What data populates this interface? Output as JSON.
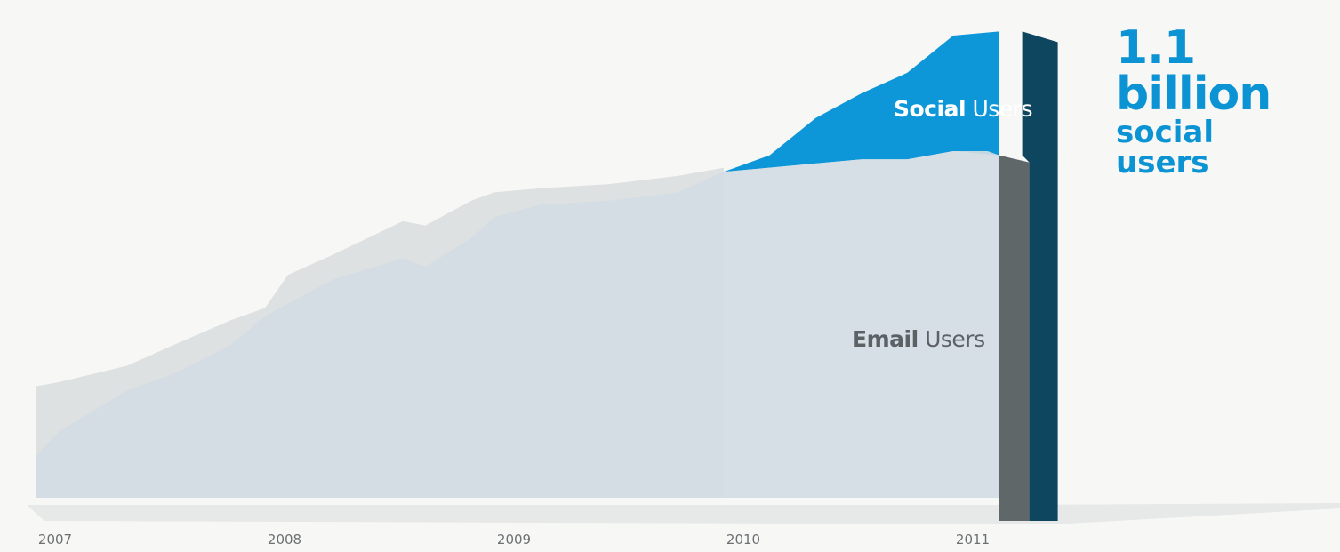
{
  "headline": {
    "value": "1.1 billion",
    "label_line1": "social",
    "label_line2": "users"
  },
  "chart_data": {
    "type": "area",
    "title": "",
    "xlabel": "",
    "ylabel": "",
    "x_ticks": [
      "2007",
      "2008",
      "2009",
      "2010",
      "2011"
    ],
    "stacked": true,
    "series": [
      {
        "name_bold": "Email",
        "name_rest": " Users",
        "color": "#d2dde3",
        "x": [
          2007.0,
          2007.1,
          2007.4,
          2007.6,
          2007.85,
          2008.0,
          2008.1,
          2008.3,
          2008.6,
          2008.7,
          2008.9,
          2009.0,
          2009.2,
          2009.5,
          2009.8,
          2010.0,
          2010.2,
          2010.4,
          2010.6,
          2010.8,
          2011.0,
          2011.15,
          2011.2
        ],
        "values": [
          0.1,
          0.16,
          0.26,
          0.3,
          0.37,
          0.44,
          0.47,
          0.53,
          0.58,
          0.56,
          0.63,
          0.68,
          0.71,
          0.72,
          0.74,
          0.79,
          0.8,
          0.81,
          0.82,
          0.82,
          0.84,
          0.84,
          0.83
        ]
      },
      {
        "name_bold": "Social",
        "name_rest": " Users",
        "color": "#0d97d8",
        "x": [
          2010.0,
          2010.2,
          2010.4,
          2010.6,
          2010.8,
          2011.0,
          2011.2
        ],
        "values": [
          0.0,
          0.03,
          0.11,
          0.16,
          0.21,
          0.28,
          0.3
        ]
      }
    ],
    "background_series": {
      "name": "",
      "color": "#dee1e2",
      "x": [
        2007.0,
        2007.1,
        2007.4,
        2007.6,
        2007.85,
        2008.0,
        2008.1,
        2008.3,
        2008.6,
        2008.7,
        2008.9,
        2009.0,
        2009.2,
        2009.5,
        2009.8,
        2010.0
      ],
      "values": [
        0.27,
        0.28,
        0.32,
        0.37,
        0.43,
        0.46,
        0.54,
        0.59,
        0.67,
        0.66,
        0.72,
        0.74,
        0.75,
        0.76,
        0.78,
        0.8
      ]
    },
    "ylim": [
      0,
      1.12
    ],
    "legend": "inline labels"
  }
}
